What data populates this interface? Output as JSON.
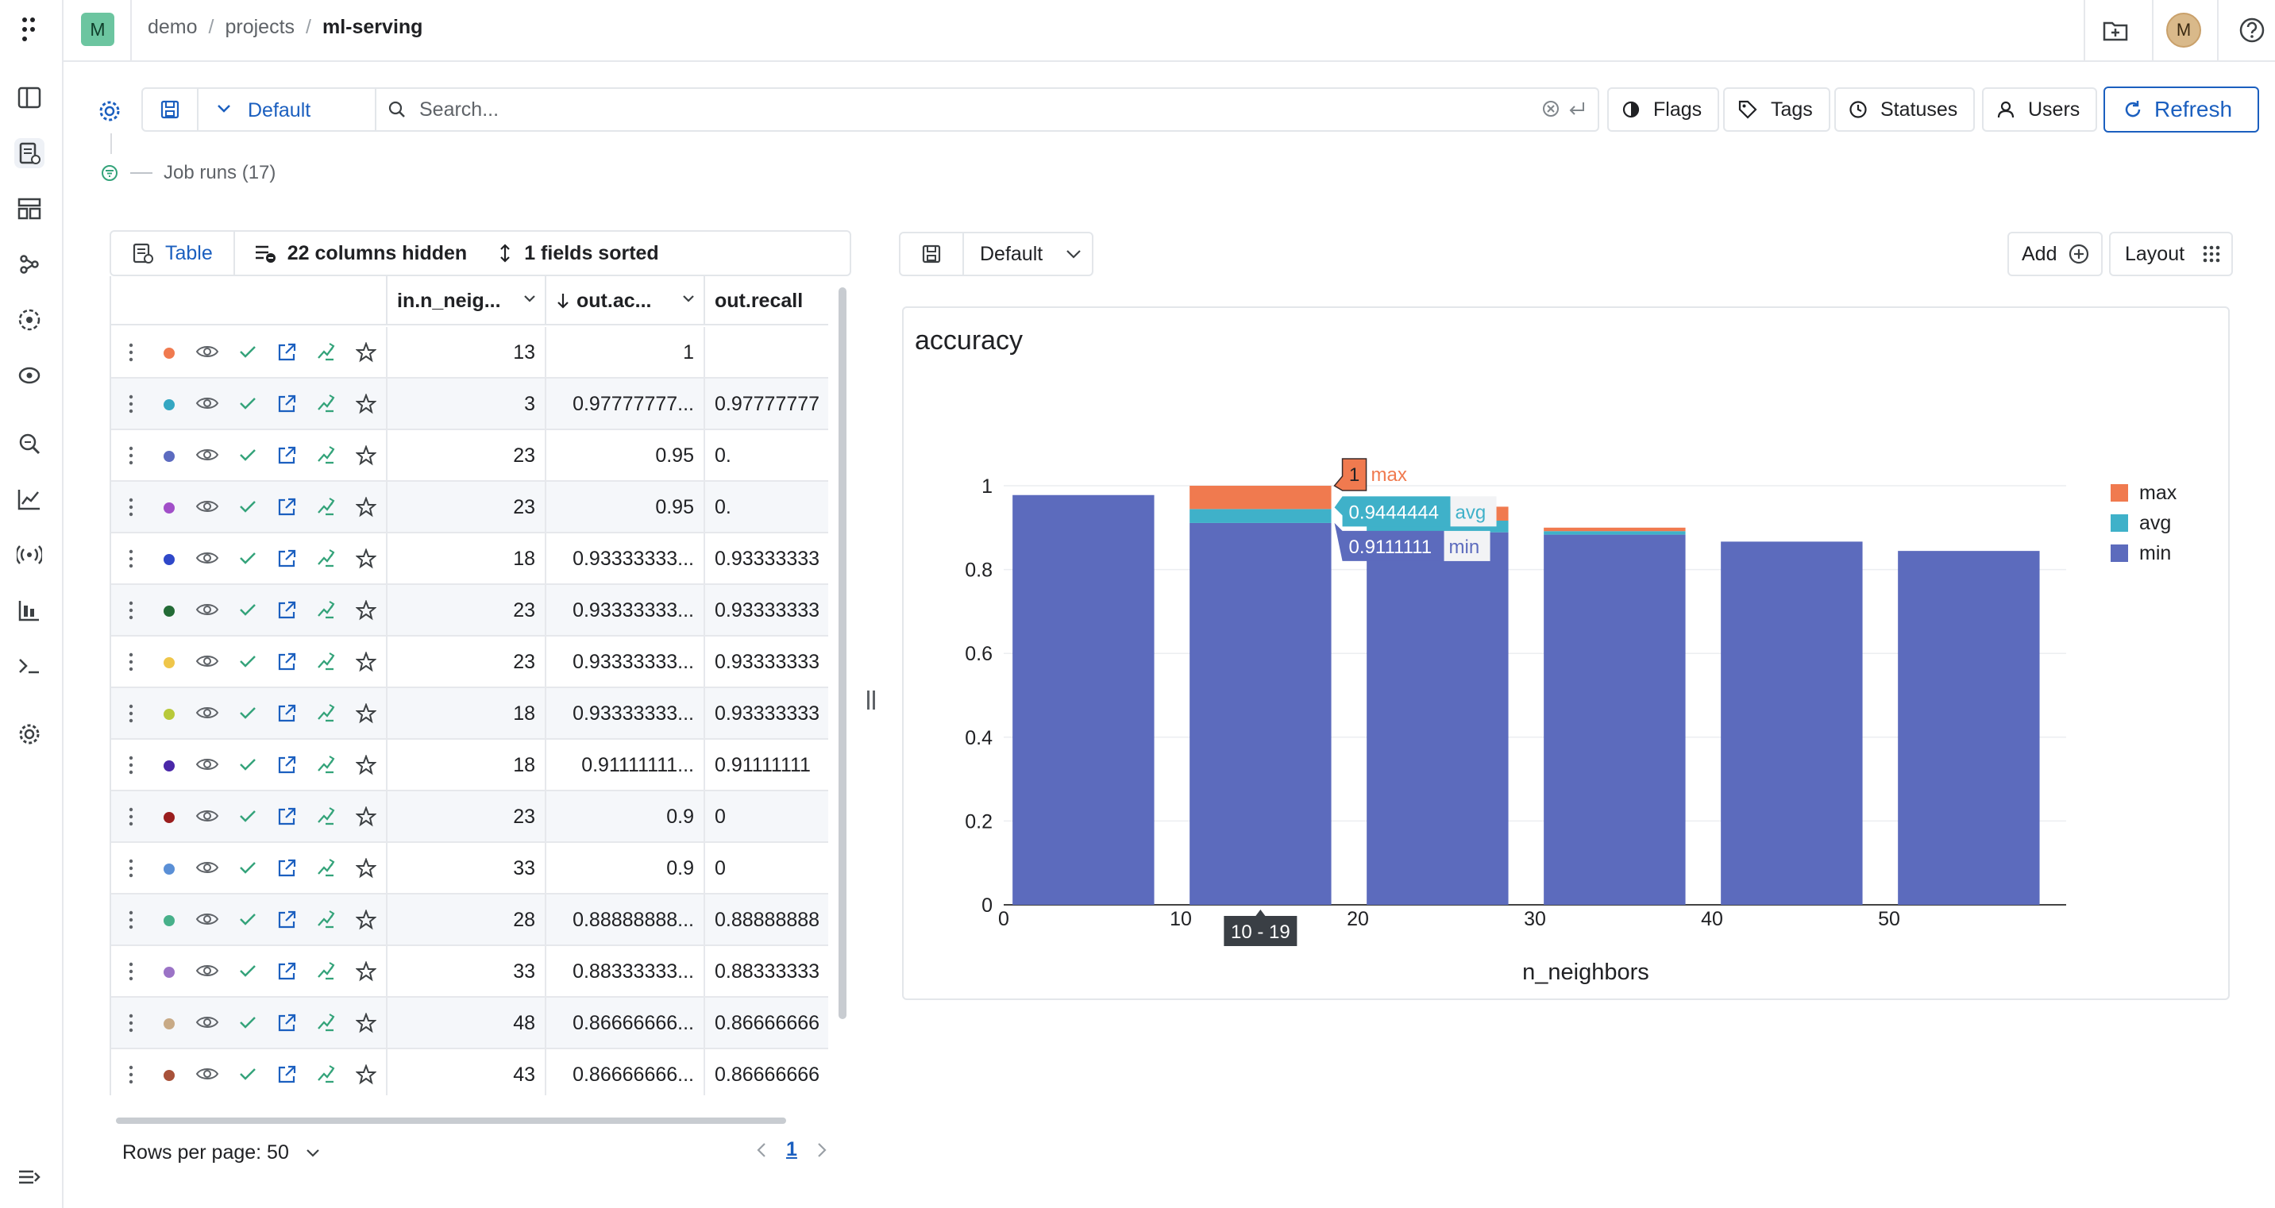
{
  "header": {
    "project_initial": "M",
    "breadcrumb": [
      "demo",
      "projects",
      "ml-serving"
    ],
    "user_initial": "M"
  },
  "toolbar": {
    "view_name": "Default",
    "search_placeholder": "Search...",
    "buttons": {
      "flags": "Flags",
      "tags": "Tags",
      "statuses": "Statuses",
      "users": "Users",
      "refresh": "Refresh"
    }
  },
  "runs_label": "Job runs (17)",
  "table": {
    "tab_label": "Table",
    "hidden_columns": "22 columns hidden",
    "sorted_fields": "1 fields sorted",
    "columns": [
      "in.n_neig...",
      "out.ac...",
      "out.recall"
    ],
    "rows": [
      {
        "color": "#f07a4f",
        "n": "13",
        "acc": "1",
        "recall": ""
      },
      {
        "color": "#35a7c2",
        "n": "3",
        "acc": "0.97777777...",
        "recall": "0.97777777"
      },
      {
        "color": "#5c6bc0",
        "n": "23",
        "acc": "0.95",
        "recall": "0."
      },
      {
        "color": "#a14fc8",
        "n": "23",
        "acc": "0.95",
        "recall": "0."
      },
      {
        "color": "#2f48c9",
        "n": "18",
        "acc": "0.93333333...",
        "recall": "0.93333333"
      },
      {
        "color": "#236b36",
        "n": "23",
        "acc": "0.93333333...",
        "recall": "0.93333333"
      },
      {
        "color": "#efc64a",
        "n": "23",
        "acc": "0.93333333...",
        "recall": "0.93333333"
      },
      {
        "color": "#b8c93a",
        "n": "18",
        "acc": "0.93333333...",
        "recall": "0.93333333"
      },
      {
        "color": "#4a27a8",
        "n": "18",
        "acc": "0.91111111...",
        "recall": "0.91111111"
      },
      {
        "color": "#9a1e1e",
        "n": "23",
        "acc": "0.9",
        "recall": "0"
      },
      {
        "color": "#5a8fd6",
        "n": "33",
        "acc": "0.9",
        "recall": "0"
      },
      {
        "color": "#47b08a",
        "n": "28",
        "acc": "0.88888888...",
        "recall": "0.88888888"
      },
      {
        "color": "#9b73c6",
        "n": "33",
        "acc": "0.88333333...",
        "recall": "0.88333333"
      },
      {
        "color": "#c8aa86",
        "n": "48",
        "acc": "0.86666666...",
        "recall": "0.86666666"
      },
      {
        "color": "#a8523a",
        "n": "43",
        "acc": "0.86666666...",
        "recall": "0.86666666"
      }
    ],
    "rows_per_page_label": "Rows per page: 50",
    "current_page": "1"
  },
  "viz": {
    "view_name": "Default",
    "add_label": "Add",
    "layout_label": "Layout"
  },
  "chart_data": {
    "type": "bar",
    "title": "accuracy",
    "xlabel": "n_neighbors",
    "ylabel": "",
    "stacked": true,
    "xlim": [
      0,
      60
    ],
    "ylim": [
      0,
      1
    ],
    "x_ticks": [
      0,
      10,
      20,
      30,
      40,
      50
    ],
    "y_ticks": [
      0,
      0.2,
      0.4,
      0.6,
      0.8,
      1
    ],
    "bins": [
      "0 - 9",
      "10 - 19",
      "20 - 29",
      "30 - 39",
      "40 - 49",
      "50 - 59"
    ],
    "bin_edges": [
      [
        0.5,
        8.5
      ],
      [
        10.5,
        18.5
      ],
      [
        20.5,
        28.5
      ],
      [
        30.5,
        38.5
      ],
      [
        40.5,
        48.5
      ],
      [
        50.5,
        58.5
      ]
    ],
    "series": [
      {
        "name": "min",
        "color": "#5c6bbd",
        "values": [
          0.9777778,
          0.9111111,
          0.8888889,
          0.8833333,
          0.8666667,
          0.8444444
        ]
      },
      {
        "name": "avg",
        "color": "#3fb1c9",
        "values": [
          0,
          0.0333333,
          0.0277778,
          0.0083333,
          0,
          0
        ]
      },
      {
        "name": "max",
        "color": "#f07a4f",
        "values": [
          0,
          0.0555556,
          0.0333333,
          0.0083333,
          0,
          0
        ]
      }
    ],
    "legend_position": "right",
    "hover": {
      "bin_label": "10 - 19",
      "max": "1",
      "avg": "0.9444444",
      "min": "0.9111111"
    }
  }
}
